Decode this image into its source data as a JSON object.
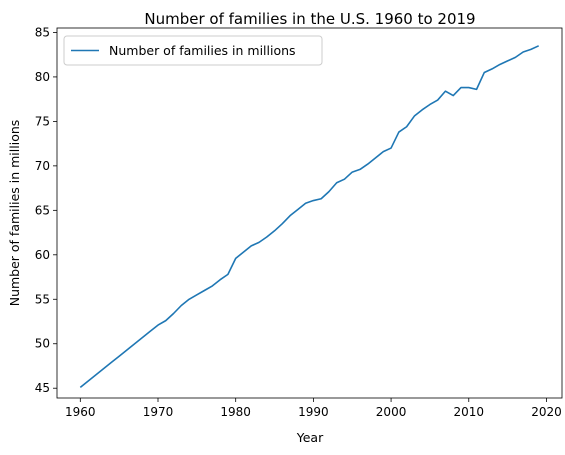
{
  "chart_data": {
    "type": "line",
    "title": "Number of families in the U.S. 1960 to 2019",
    "xlabel": "Year",
    "ylabel": "Number of families in millions",
    "xlim": [
      1957,
      2022
    ],
    "ylim": [
      43.9,
      85.5
    ],
    "xticks": [
      1960,
      1970,
      1980,
      1990,
      2000,
      2010,
      2020
    ],
    "yticks": [
      45,
      50,
      55,
      60,
      65,
      70,
      75,
      80,
      85
    ],
    "grid": false,
    "legend_position": "top-left",
    "series": [
      {
        "name": "Number of families in millions",
        "color": "#1f77b4",
        "x": [
          1960,
          1961,
          1962,
          1963,
          1964,
          1965,
          1966,
          1967,
          1968,
          1969,
          1970,
          1971,
          1972,
          1973,
          1974,
          1975,
          1976,
          1977,
          1978,
          1979,
          1980,
          1981,
          1982,
          1983,
          1984,
          1985,
          1986,
          1987,
          1988,
          1989,
          1990,
          1991,
          1992,
          1993,
          1994,
          1995,
          1996,
          1997,
          1998,
          1999,
          2000,
          2001,
          2002,
          2003,
          2004,
          2005,
          2006,
          2007,
          2008,
          2009,
          2010,
          2011,
          2012,
          2013,
          2014,
          2015,
          2016,
          2017,
          2018,
          2019
        ],
        "values": [
          45.1,
          45.8,
          46.5,
          47.2,
          47.9,
          48.6,
          49.3,
          50.0,
          50.7,
          51.4,
          52.1,
          52.6,
          53.4,
          54.3,
          55.0,
          55.5,
          56.0,
          56.5,
          57.2,
          57.8,
          59.6,
          60.3,
          61.0,
          61.4,
          62.0,
          62.7,
          63.5,
          64.4,
          65.1,
          65.8,
          66.1,
          66.3,
          67.1,
          68.1,
          68.5,
          69.3,
          69.6,
          70.2,
          70.9,
          71.6,
          72.0,
          73.8,
          74.4,
          75.6,
          76.3,
          76.9,
          77.4,
          78.4,
          77.9,
          78.8,
          78.8,
          78.6,
          80.5,
          80.9,
          81.4,
          81.8,
          82.2,
          82.8,
          83.1,
          83.5
        ]
      }
    ]
  }
}
